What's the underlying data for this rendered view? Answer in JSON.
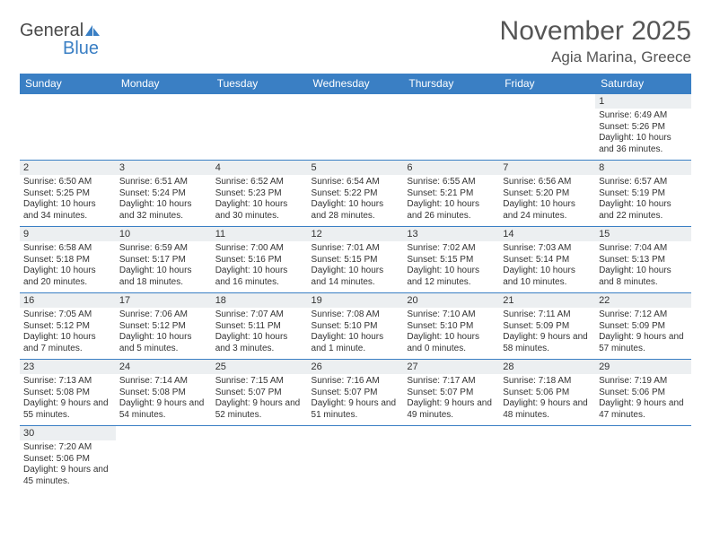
{
  "logo": {
    "word1": "General",
    "word2": "Blue"
  },
  "title": "November 2025",
  "subtitle": "Agia Marina, Greece",
  "weekday_labels": [
    "Sunday",
    "Monday",
    "Tuesday",
    "Wednesday",
    "Thursday",
    "Friday",
    "Saturday"
  ],
  "header_bg": "#3a7fc4",
  "header_fg": "#ffffff",
  "daynum_bg": "#eceff1",
  "cell_border": "#3a7fc4",
  "text_color": "#333333",
  "title_color": "#555555",
  "weeks": [
    [
      {
        "n": "",
        "sr": "",
        "ss": "",
        "dl": ""
      },
      {
        "n": "",
        "sr": "",
        "ss": "",
        "dl": ""
      },
      {
        "n": "",
        "sr": "",
        "ss": "",
        "dl": ""
      },
      {
        "n": "",
        "sr": "",
        "ss": "",
        "dl": ""
      },
      {
        "n": "",
        "sr": "",
        "ss": "",
        "dl": ""
      },
      {
        "n": "",
        "sr": "",
        "ss": "",
        "dl": ""
      },
      {
        "n": "1",
        "sr": "Sunrise: 6:49 AM",
        "ss": "Sunset: 5:26 PM",
        "dl": "Daylight: 10 hours and 36 minutes."
      }
    ],
    [
      {
        "n": "2",
        "sr": "Sunrise: 6:50 AM",
        "ss": "Sunset: 5:25 PM",
        "dl": "Daylight: 10 hours and 34 minutes."
      },
      {
        "n": "3",
        "sr": "Sunrise: 6:51 AM",
        "ss": "Sunset: 5:24 PM",
        "dl": "Daylight: 10 hours and 32 minutes."
      },
      {
        "n": "4",
        "sr": "Sunrise: 6:52 AM",
        "ss": "Sunset: 5:23 PM",
        "dl": "Daylight: 10 hours and 30 minutes."
      },
      {
        "n": "5",
        "sr": "Sunrise: 6:54 AM",
        "ss": "Sunset: 5:22 PM",
        "dl": "Daylight: 10 hours and 28 minutes."
      },
      {
        "n": "6",
        "sr": "Sunrise: 6:55 AM",
        "ss": "Sunset: 5:21 PM",
        "dl": "Daylight: 10 hours and 26 minutes."
      },
      {
        "n": "7",
        "sr": "Sunrise: 6:56 AM",
        "ss": "Sunset: 5:20 PM",
        "dl": "Daylight: 10 hours and 24 minutes."
      },
      {
        "n": "8",
        "sr": "Sunrise: 6:57 AM",
        "ss": "Sunset: 5:19 PM",
        "dl": "Daylight: 10 hours and 22 minutes."
      }
    ],
    [
      {
        "n": "9",
        "sr": "Sunrise: 6:58 AM",
        "ss": "Sunset: 5:18 PM",
        "dl": "Daylight: 10 hours and 20 minutes."
      },
      {
        "n": "10",
        "sr": "Sunrise: 6:59 AM",
        "ss": "Sunset: 5:17 PM",
        "dl": "Daylight: 10 hours and 18 minutes."
      },
      {
        "n": "11",
        "sr": "Sunrise: 7:00 AM",
        "ss": "Sunset: 5:16 PM",
        "dl": "Daylight: 10 hours and 16 minutes."
      },
      {
        "n": "12",
        "sr": "Sunrise: 7:01 AM",
        "ss": "Sunset: 5:15 PM",
        "dl": "Daylight: 10 hours and 14 minutes."
      },
      {
        "n": "13",
        "sr": "Sunrise: 7:02 AM",
        "ss": "Sunset: 5:15 PM",
        "dl": "Daylight: 10 hours and 12 minutes."
      },
      {
        "n": "14",
        "sr": "Sunrise: 7:03 AM",
        "ss": "Sunset: 5:14 PM",
        "dl": "Daylight: 10 hours and 10 minutes."
      },
      {
        "n": "15",
        "sr": "Sunrise: 7:04 AM",
        "ss": "Sunset: 5:13 PM",
        "dl": "Daylight: 10 hours and 8 minutes."
      }
    ],
    [
      {
        "n": "16",
        "sr": "Sunrise: 7:05 AM",
        "ss": "Sunset: 5:12 PM",
        "dl": "Daylight: 10 hours and 7 minutes."
      },
      {
        "n": "17",
        "sr": "Sunrise: 7:06 AM",
        "ss": "Sunset: 5:12 PM",
        "dl": "Daylight: 10 hours and 5 minutes."
      },
      {
        "n": "18",
        "sr": "Sunrise: 7:07 AM",
        "ss": "Sunset: 5:11 PM",
        "dl": "Daylight: 10 hours and 3 minutes."
      },
      {
        "n": "19",
        "sr": "Sunrise: 7:08 AM",
        "ss": "Sunset: 5:10 PM",
        "dl": "Daylight: 10 hours and 1 minute."
      },
      {
        "n": "20",
        "sr": "Sunrise: 7:10 AM",
        "ss": "Sunset: 5:10 PM",
        "dl": "Daylight: 10 hours and 0 minutes."
      },
      {
        "n": "21",
        "sr": "Sunrise: 7:11 AM",
        "ss": "Sunset: 5:09 PM",
        "dl": "Daylight: 9 hours and 58 minutes."
      },
      {
        "n": "22",
        "sr": "Sunrise: 7:12 AM",
        "ss": "Sunset: 5:09 PM",
        "dl": "Daylight: 9 hours and 57 minutes."
      }
    ],
    [
      {
        "n": "23",
        "sr": "Sunrise: 7:13 AM",
        "ss": "Sunset: 5:08 PM",
        "dl": "Daylight: 9 hours and 55 minutes."
      },
      {
        "n": "24",
        "sr": "Sunrise: 7:14 AM",
        "ss": "Sunset: 5:08 PM",
        "dl": "Daylight: 9 hours and 54 minutes."
      },
      {
        "n": "25",
        "sr": "Sunrise: 7:15 AM",
        "ss": "Sunset: 5:07 PM",
        "dl": "Daylight: 9 hours and 52 minutes."
      },
      {
        "n": "26",
        "sr": "Sunrise: 7:16 AM",
        "ss": "Sunset: 5:07 PM",
        "dl": "Daylight: 9 hours and 51 minutes."
      },
      {
        "n": "27",
        "sr": "Sunrise: 7:17 AM",
        "ss": "Sunset: 5:07 PM",
        "dl": "Daylight: 9 hours and 49 minutes."
      },
      {
        "n": "28",
        "sr": "Sunrise: 7:18 AM",
        "ss": "Sunset: 5:06 PM",
        "dl": "Daylight: 9 hours and 48 minutes."
      },
      {
        "n": "29",
        "sr": "Sunrise: 7:19 AM",
        "ss": "Sunset: 5:06 PM",
        "dl": "Daylight: 9 hours and 47 minutes."
      }
    ],
    [
      {
        "n": "30",
        "sr": "Sunrise: 7:20 AM",
        "ss": "Sunset: 5:06 PM",
        "dl": "Daylight: 9 hours and 45 minutes."
      },
      {
        "n": "",
        "sr": "",
        "ss": "",
        "dl": ""
      },
      {
        "n": "",
        "sr": "",
        "ss": "",
        "dl": ""
      },
      {
        "n": "",
        "sr": "",
        "ss": "",
        "dl": ""
      },
      {
        "n": "",
        "sr": "",
        "ss": "",
        "dl": ""
      },
      {
        "n": "",
        "sr": "",
        "ss": "",
        "dl": ""
      },
      {
        "n": "",
        "sr": "",
        "ss": "",
        "dl": ""
      }
    ]
  ]
}
